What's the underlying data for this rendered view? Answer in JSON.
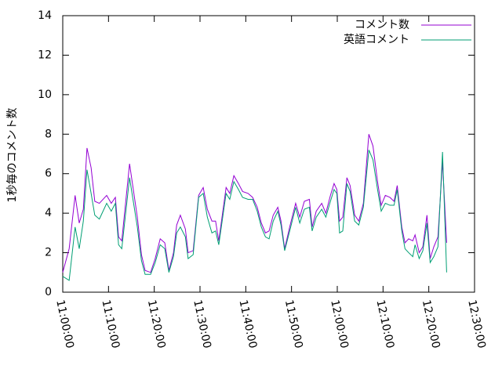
{
  "chart_data": {
    "type": "line",
    "ylabel": "1秒毎のコメント数",
    "x": [
      "11:00:00",
      "11:01:24",
      "11:02:42",
      "11:03:36",
      "11:04:30",
      "11:05:18",
      "11:06:12",
      "11:07:00",
      "11:08:00",
      "11:09:36",
      "11:10:36",
      "11:11:30",
      "11:12:12",
      "11:12:54",
      "11:14:36",
      "11:16:18",
      "11:17:12",
      "11:18:00",
      "11:19:12",
      "11:20:12",
      "11:21:18",
      "11:22:18",
      "11:23:12",
      "11:24:12",
      "11:24:54",
      "11:25:42",
      "11:26:48",
      "11:27:24",
      "11:28:30",
      "11:29:42",
      "11:30:42",
      "11:31:36",
      "11:32:36",
      "11:33:24",
      "11:34:06",
      "11:35:42",
      "11:36:30",
      "11:37:24",
      "11:38:24",
      "11:39:18",
      "11:40:30",
      "11:41:30",
      "11:42:30",
      "11:43:24",
      "11:44:18",
      "11:45:06",
      "11:46:00",
      "11:47:00",
      "11:47:42",
      "11:48:30",
      "11:49:36",
      "11:50:54",
      "11:51:48",
      "11:52:48",
      "11:53:54",
      "11:54:30",
      "11:55:24",
      "11:56:36",
      "11:57:30",
      "11:58:30",
      "11:59:18",
      "11:59:54",
      "12:00:30",
      "12:01:12",
      "12:02:06",
      "12:02:48",
      "12:03:48",
      "12:04:42",
      "12:05:42",
      "12:06:54",
      "12:07:48",
      "12:08:48",
      "12:09:36",
      "12:10:30",
      "12:11:30",
      "12:12:24",
      "12:13:06",
      "12:14:06",
      "12:14:48",
      "12:15:36",
      "12:16:30",
      "12:17:00",
      "12:17:54",
      "12:18:42",
      "12:19:36",
      "12:20:18",
      "12:21:06",
      "12:22:00",
      "12:23:00",
      "12:23:54"
    ],
    "series": [
      {
        "name": "コメント数",
        "color": "#9400d3",
        "values": [
          1.0,
          2.2,
          4.9,
          3.5,
          4.2,
          7.3,
          6.3,
          4.6,
          4.5,
          4.9,
          4.5,
          4.8,
          2.8,
          2.6,
          6.5,
          3.8,
          1.9,
          1.1,
          1.0,
          1.7,
          2.7,
          2.5,
          1.1,
          2.0,
          3.4,
          3.9,
          3.2,
          2.0,
          2.1,
          4.9,
          5.3,
          4.2,
          3.6,
          3.6,
          2.6,
          5.3,
          5.0,
          5.9,
          5.5,
          5.1,
          5.0,
          4.8,
          4.3,
          3.5,
          3.0,
          3.1,
          3.9,
          4.3,
          3.6,
          2.2,
          3.3,
          4.5,
          3.8,
          4.6,
          4.7,
          3.3,
          4.1,
          4.5,
          4.0,
          4.9,
          5.5,
          5.2,
          3.6,
          3.8,
          5.8,
          5.4,
          3.9,
          3.6,
          4.5,
          8.0,
          7.4,
          5.6,
          4.4,
          4.9,
          4.8,
          4.6,
          5.4,
          3.3,
          2.5,
          2.7,
          2.6,
          2.9,
          2.0,
          2.3,
          3.9,
          1.7,
          2.3,
          2.8,
          6.6,
          2.5
        ]
      },
      {
        "name": "英語コメント",
        "color": "#009e73",
        "values": [
          0.8,
          0.6,
          3.3,
          2.2,
          3.6,
          6.2,
          5.0,
          3.9,
          3.7,
          4.5,
          4.1,
          4.5,
          2.4,
          2.2,
          5.8,
          3.3,
          1.6,
          0.9,
          0.9,
          1.5,
          2.4,
          2.2,
          1.0,
          1.8,
          3.0,
          3.3,
          2.8,
          1.7,
          1.9,
          4.8,
          5.0,
          3.8,
          3.0,
          3.1,
          2.4,
          5.0,
          4.7,
          5.6,
          5.2,
          4.8,
          4.7,
          4.7,
          4.1,
          3.3,
          2.8,
          2.7,
          3.6,
          4.1,
          3.4,
          2.1,
          3.1,
          4.3,
          3.5,
          4.2,
          4.3,
          3.1,
          3.8,
          4.2,
          3.8,
          4.6,
          5.2,
          5.0,
          3.0,
          3.1,
          5.5,
          5.1,
          3.6,
          3.4,
          4.3,
          7.2,
          6.7,
          5.2,
          4.1,
          4.5,
          4.4,
          4.4,
          5.2,
          3.1,
          2.2,
          2.0,
          1.8,
          2.4,
          1.7,
          2.1,
          3.5,
          1.5,
          1.8,
          2.3,
          7.1,
          1.0
        ]
      }
    ],
    "xlim": [
      "11:00:00",
      "12:30:00"
    ],
    "xticks": [
      "11:00:00",
      "11:10:00",
      "11:20:00",
      "11:30:00",
      "11:40:00",
      "11:50:00",
      "12:00:00",
      "12:10:00",
      "12:20:00",
      "12:30:00"
    ],
    "ylim": [
      0,
      14
    ],
    "yticks": [
      0,
      2,
      4,
      6,
      8,
      10,
      12,
      14
    ],
    "legend": "top-right"
  }
}
